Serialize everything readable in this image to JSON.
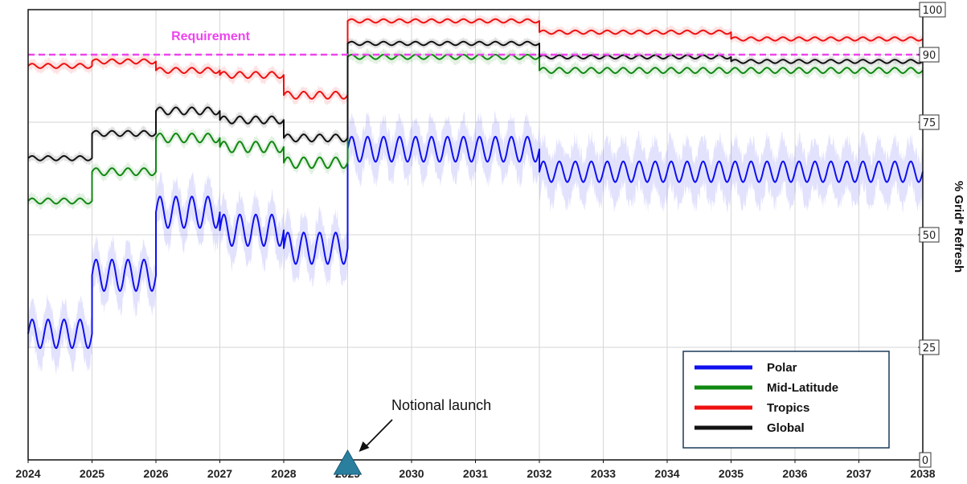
{
  "chart_data": {
    "type": "line",
    "title": "",
    "xlabel": "",
    "ylabel": "% Grid* Refresh",
    "xlim": [
      2024,
      2038
    ],
    "ylim": [
      0,
      100
    ],
    "x_ticks": [
      "2024",
      "2025",
      "2026",
      "2027",
      "2028",
      "2029",
      "2030",
      "2031",
      "2032",
      "2033",
      "2034",
      "2035",
      "2036",
      "2037",
      "2038"
    ],
    "y_ticks": [
      "0",
      "25",
      "50",
      "75",
      "90",
      "100"
    ],
    "grid": true,
    "legend_position": "bottom-right",
    "requirement": {
      "label": "Requirement",
      "value": 90,
      "color": "#ee44ee"
    },
    "annotation": {
      "text": "Notional launch",
      "x": 2029
    },
    "series": [
      {
        "name": "Polar",
        "color": "#1010ee",
        "segments": [
          {
            "start": 2024,
            "end": 2025,
            "level": 28,
            "amp": 3.2,
            "band": 6
          },
          {
            "start": 2025,
            "end": 2026,
            "level": 41,
            "amp": 3.5,
            "band": 6
          },
          {
            "start": 2026,
            "end": 2027,
            "level": 55,
            "amp": 3.5,
            "band": 6
          },
          {
            "start": 2027,
            "end": 2028,
            "level": 51,
            "amp": 3.5,
            "band": 6
          },
          {
            "start": 2028,
            "end": 2029,
            "level": 47,
            "amp": 3.5,
            "band": 6
          },
          {
            "start": 2029,
            "end": 2032,
            "level": 69,
            "amp": 2.8,
            "band": 6
          },
          {
            "start": 2032,
            "end": 2038,
            "level": 64,
            "amp": 2.3,
            "band": 7
          }
        ]
      },
      {
        "name": "Mid-Latitude",
        "color": "#118811",
        "segments": [
          {
            "start": 2024,
            "end": 2025,
            "level": 57.5,
            "amp": 0.6,
            "band": 1.5
          },
          {
            "start": 2025,
            "end": 2026,
            "level": 64,
            "amp": 0.8,
            "band": 1.5
          },
          {
            "start": 2026,
            "end": 2027,
            "level": 71.5,
            "amp": 1.0,
            "band": 1.5
          },
          {
            "start": 2027,
            "end": 2028,
            "level": 69.5,
            "amp": 1.2,
            "band": 1.5
          },
          {
            "start": 2028,
            "end": 2029,
            "level": 66,
            "amp": 1.2,
            "band": 1.5
          },
          {
            "start": 2029,
            "end": 2032,
            "level": 89.5,
            "amp": 0.5,
            "band": 1.5
          },
          {
            "start": 2032,
            "end": 2038,
            "level": 86.5,
            "amp": 0.6,
            "band": 1.5
          }
        ]
      },
      {
        "name": "Tropics",
        "color": "#ee1111",
        "segments": [
          {
            "start": 2024,
            "end": 2025,
            "level": 87.5,
            "amp": 0.5,
            "band": 1.5
          },
          {
            "start": 2025,
            "end": 2026,
            "level": 88.5,
            "amp": 0.5,
            "band": 1.5
          },
          {
            "start": 2026,
            "end": 2027,
            "level": 86.5,
            "amp": 0.6,
            "band": 1.5
          },
          {
            "start": 2027,
            "end": 2028,
            "level": 85.5,
            "amp": 0.7,
            "band": 1.5
          },
          {
            "start": 2028,
            "end": 2029,
            "level": 81,
            "amp": 0.8,
            "band": 1.5
          },
          {
            "start": 2029,
            "end": 2032,
            "level": 97.5,
            "amp": 0.4,
            "band": 1.2
          },
          {
            "start": 2032,
            "end": 2035,
            "level": 95,
            "amp": 0.4,
            "band": 1.2
          },
          {
            "start": 2035,
            "end": 2038,
            "level": 93.5,
            "amp": 0.4,
            "band": 1.2
          }
        ]
      },
      {
        "name": "Global",
        "color": "#111111",
        "segments": [
          {
            "start": 2024,
            "end": 2025,
            "level": 67,
            "amp": 0.5,
            "band": 1.2
          },
          {
            "start": 2025,
            "end": 2026,
            "level": 72.5,
            "amp": 0.6,
            "band": 1.2
          },
          {
            "start": 2026,
            "end": 2027,
            "level": 77.5,
            "amp": 0.8,
            "band": 1.2
          },
          {
            "start": 2027,
            "end": 2028,
            "level": 75.5,
            "amp": 0.8,
            "band": 1.2
          },
          {
            "start": 2028,
            "end": 2029,
            "level": 71.5,
            "amp": 0.8,
            "band": 1.2
          },
          {
            "start": 2029,
            "end": 2032,
            "level": 92.5,
            "amp": 0.4,
            "band": 1.0
          },
          {
            "start": 2032,
            "end": 2035,
            "level": 89.5,
            "amp": 0.4,
            "band": 1.0
          },
          {
            "start": 2035,
            "end": 2038,
            "level": 88.5,
            "amp": 0.4,
            "band": 1.0
          }
        ]
      }
    ]
  }
}
